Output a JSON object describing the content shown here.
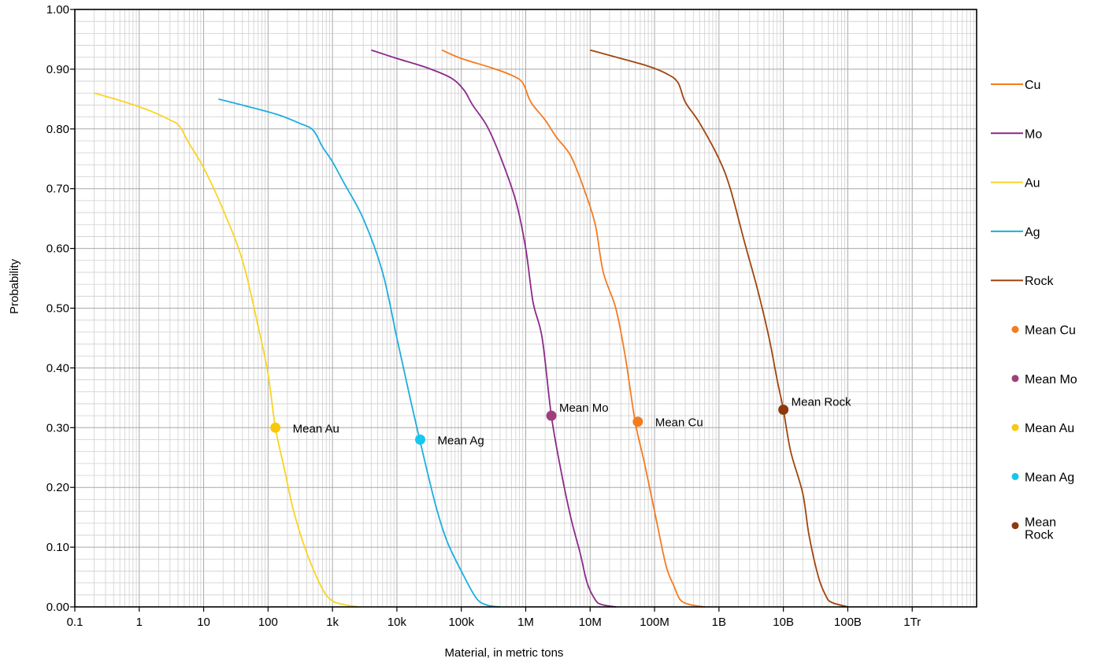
{
  "chart_data": {
    "type": "line",
    "title": "",
    "xlabel": "Material, in metric tons",
    "ylabel": "Probability",
    "xscale": "log",
    "xlim": [
      0.1,
      10000000000000
    ],
    "ylim": [
      0,
      1
    ],
    "grid": true,
    "legend_position": "right",
    "x_ticks": [
      {
        "value": 0.1,
        "label": "0.1"
      },
      {
        "value": 1,
        "label": "1"
      },
      {
        "value": 10,
        "label": "10"
      },
      {
        "value": 100,
        "label": "100"
      },
      {
        "value": 1000,
        "label": "1k"
      },
      {
        "value": 10000,
        "label": "10k"
      },
      {
        "value": 100000,
        "label": "100k"
      },
      {
        "value": 1000000,
        "label": "1M"
      },
      {
        "value": 10000000,
        "label": "10M"
      },
      {
        "value": 100000000,
        "label": "100M"
      },
      {
        "value": 1000000000,
        "label": "1B"
      },
      {
        "value": 10000000000,
        "label": "10B"
      },
      {
        "value": 100000000000,
        "label": "100B"
      },
      {
        "value": 1000000000000,
        "label": "1Tr"
      }
    ],
    "y_ticks": [
      {
        "value": 0.0,
        "label": "0.00"
      },
      {
        "value": 0.1,
        "label": "0.10"
      },
      {
        "value": 0.2,
        "label": "0.20"
      },
      {
        "value": 0.3,
        "label": "0.30"
      },
      {
        "value": 0.4,
        "label": "0.40"
      },
      {
        "value": 0.5,
        "label": "0.50"
      },
      {
        "value": 0.6,
        "label": "0.60"
      },
      {
        "value": 0.7,
        "label": "0.70"
      },
      {
        "value": 0.8,
        "label": "0.80"
      },
      {
        "value": 0.9,
        "label": "0.90"
      },
      {
        "value": 1.0,
        "label": "1.00"
      }
    ],
    "series": [
      {
        "name": "Cu",
        "color": "#F47B20",
        "points": [
          [
            50000,
            0.932
          ],
          [
            100000,
            0.918
          ],
          [
            300000,
            0.902
          ],
          [
            600000,
            0.89
          ],
          [
            900000,
            0.877
          ],
          [
            1200000,
            0.845
          ],
          [
            2000000,
            0.815
          ],
          [
            3000000,
            0.786
          ],
          [
            5000000,
            0.755
          ],
          [
            8000000,
            0.7
          ],
          [
            12000000,
            0.64
          ],
          [
            16000000,
            0.56
          ],
          [
            25000000,
            0.5
          ],
          [
            35000000,
            0.42
          ],
          [
            50000000,
            0.31
          ],
          [
            70000000,
            0.24
          ],
          [
            100000000,
            0.16
          ],
          [
            150000000,
            0.07
          ],
          [
            200000000,
            0.035
          ],
          [
            250000000,
            0.012
          ],
          [
            350000000,
            0.004
          ],
          [
            600000000,
            0.0
          ]
        ]
      },
      {
        "name": "Mo",
        "color": "#8B2A8B",
        "points": [
          [
            4000,
            0.932
          ],
          [
            10000,
            0.918
          ],
          [
            30000,
            0.902
          ],
          [
            70000,
            0.885
          ],
          [
            110000,
            0.865
          ],
          [
            150000,
            0.84
          ],
          [
            250000,
            0.805
          ],
          [
            400000,
            0.755
          ],
          [
            700000,
            0.68
          ],
          [
            1000000,
            0.6
          ],
          [
            1300000,
            0.51
          ],
          [
            1800000,
            0.45
          ],
          [
            2500000,
            0.32
          ],
          [
            3500000,
            0.23
          ],
          [
            5000000,
            0.15
          ],
          [
            7000000,
            0.09
          ],
          [
            9000000,
            0.04
          ],
          [
            12000000,
            0.012
          ],
          [
            15000000,
            0.004
          ],
          [
            25000000,
            0.0
          ]
        ]
      },
      {
        "name": "Au",
        "color": "#F9D423",
        "points": [
          [
            0.2,
            0.86
          ],
          [
            0.6,
            0.845
          ],
          [
            1.5,
            0.83
          ],
          [
            3,
            0.815
          ],
          [
            4.2,
            0.805
          ],
          [
            6,
            0.775
          ],
          [
            10,
            0.735
          ],
          [
            20,
            0.665
          ],
          [
            40,
            0.58
          ],
          [
            70,
            0.47
          ],
          [
            100,
            0.39
          ],
          [
            130,
            0.3
          ],
          [
            180,
            0.23
          ],
          [
            250,
            0.16
          ],
          [
            400,
            0.09
          ],
          [
            700,
            0.03
          ],
          [
            1000,
            0.01
          ],
          [
            1500,
            0.004
          ],
          [
            2500,
            0.0
          ]
        ]
      },
      {
        "name": "Ag",
        "color": "#1CAEE0",
        "points": [
          [
            17,
            0.85
          ],
          [
            60,
            0.835
          ],
          [
            150,
            0.823
          ],
          [
            300,
            0.81
          ],
          [
            500,
            0.798
          ],
          [
            700,
            0.77
          ],
          [
            1000,
            0.745
          ],
          [
            1500,
            0.71
          ],
          [
            3000,
            0.65
          ],
          [
            6000,
            0.56
          ],
          [
            10000,
            0.45
          ],
          [
            16000,
            0.35
          ],
          [
            25000,
            0.26
          ],
          [
            40000,
            0.17
          ],
          [
            60000,
            0.11
          ],
          [
            100000,
            0.06
          ],
          [
            170000,
            0.015
          ],
          [
            250000,
            0.003
          ],
          [
            400000,
            0.0
          ]
        ]
      },
      {
        "name": "Rock",
        "color": "#A0450F",
        "points": [
          [
            10000000,
            0.932
          ],
          [
            30000000,
            0.918
          ],
          [
            80000000,
            0.905
          ],
          [
            150000000,
            0.893
          ],
          [
            230000000,
            0.878
          ],
          [
            300000000,
            0.845
          ],
          [
            500000000,
            0.81
          ],
          [
            1000000000,
            0.75
          ],
          [
            1500000000,
            0.7
          ],
          [
            2500000000,
            0.61
          ],
          [
            4000000000,
            0.53
          ],
          [
            6000000000,
            0.45
          ],
          [
            8000000000,
            0.38
          ],
          [
            10000000000,
            0.33
          ],
          [
            13000000000,
            0.26
          ],
          [
            20000000000,
            0.19
          ],
          [
            25000000000,
            0.12
          ],
          [
            35000000000,
            0.05
          ],
          [
            45000000000,
            0.02
          ],
          [
            55000000000,
            0.008
          ],
          [
            100000000000,
            0.0
          ]
        ]
      }
    ],
    "means": [
      {
        "name": "Mean Cu",
        "label": "Mean Cu",
        "color": "#F47B20",
        "x": 55000000,
        "y": 0.31,
        "label_side": "right"
      },
      {
        "name": "Mean Mo",
        "label": "Mean Mo",
        "color": "#9E3F7A",
        "x": 2500000,
        "y": 0.32,
        "label_side": "above-right"
      },
      {
        "name": "Mean Au",
        "label": "Mean Au",
        "color": "#F9C80E",
        "x": 130,
        "y": 0.3,
        "label_side": "right"
      },
      {
        "name": "Mean Ag",
        "label": "Mean Ag",
        "color": "#14C8F0",
        "x": 23000,
        "y": 0.28,
        "label_side": "right"
      },
      {
        "name": "Mean Rock",
        "label": "Mean Rock",
        "color": "#8B3A0F",
        "x": 10000000000,
        "y": 0.33,
        "label_side": "above-right"
      }
    ],
    "legend": [
      {
        "label": "Cu",
        "kind": "line",
        "color": "#F47B20"
      },
      {
        "label": "Mo",
        "kind": "line",
        "color": "#8B2A8B"
      },
      {
        "label": "Au",
        "kind": "line",
        "color": "#F9D423"
      },
      {
        "label": "Ag",
        "kind": "line",
        "color": "#1CAEE0"
      },
      {
        "label": "Rock",
        "kind": "line",
        "color": "#A0450F"
      },
      {
        "label": "Mean Cu",
        "kind": "dot",
        "color": "#F47B20"
      },
      {
        "label": "Mean Mo",
        "kind": "dot",
        "color": "#9E3F7A"
      },
      {
        "label": "Mean Au",
        "kind": "dot",
        "color": "#F9C80E"
      },
      {
        "label": "Mean Ag",
        "kind": "dot",
        "color": "#14C8F0"
      },
      {
        "label": "Mean Rock",
        "kind": "dot",
        "color": "#8B3A0F"
      }
    ]
  }
}
